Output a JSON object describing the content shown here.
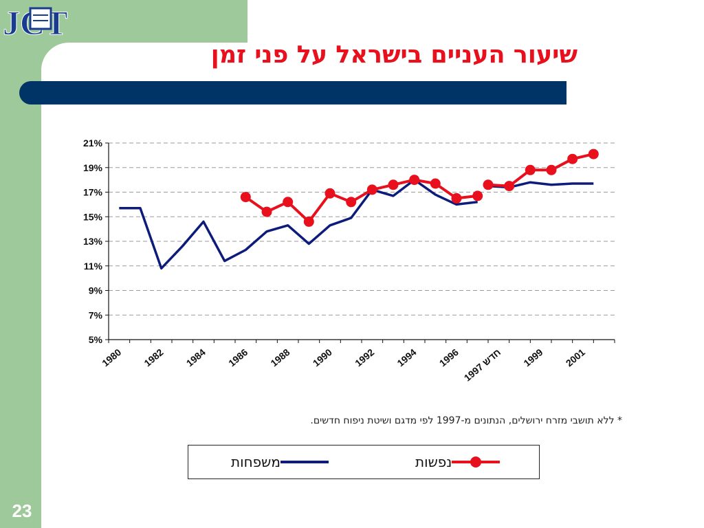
{
  "slide": {
    "title": "שיעור העניים בישראל על פני זמן",
    "page_number": "23",
    "footnote": "* ללא תושבי מזרח ירושלים, הנתונים מ-1997 לפי מדגם ושיטת ניפוח חדשים.",
    "logo_text": "JCT",
    "colors": {
      "sidebar_green": "#9ec99a",
      "bar_navy": "#003366",
      "title_red": "#e8101c"
    }
  },
  "legend": {
    "families_label": "משפחות",
    "persons_label": "נפשות"
  },
  "chart_data": {
    "type": "line",
    "x_tick_labels": [
      "1980",
      "1982",
      "1984",
      "1986",
      "1988",
      "1990",
      "1992",
      "1994",
      "1996",
      "1997 חדש",
      "1999",
      "2001"
    ],
    "y_tick_labels": [
      "21%",
      "19%",
      "17%",
      "15%",
      "13%",
      "11%",
      "9%",
      "7%",
      "5%"
    ],
    "ylim": [
      5,
      21
    ],
    "grid": true,
    "legend_position": "bottom",
    "series": [
      {
        "name": "משפחות",
        "color": "#0d1b7a",
        "marker": "none",
        "segments": [
          {
            "x": [
              1980,
              1981,
              1982,
              1983,
              1984,
              1985,
              1986,
              1987,
              1988,
              1989,
              1990,
              1991,
              1992,
              1993,
              1994,
              1995,
              1996,
              1997
            ],
            "y": [
              15.7,
              15.7,
              10.8,
              12.6,
              14.6,
              11.4,
              12.3,
              13.8,
              14.3,
              12.8,
              14.3,
              14.9,
              17.2,
              16.7,
              18.0,
              16.8,
              16.0,
              16.2
            ]
          },
          {
            "x": [
              1997.5,
              1998.5,
              1999.5,
              2000.5,
              2001.5,
              2002.5
            ],
            "y": [
              17.5,
              17.4,
              17.8,
              17.6,
              17.7,
              17.7
            ]
          }
        ]
      },
      {
        "name": "נפשות",
        "color": "#e8101c",
        "marker": "circle",
        "segments": [
          {
            "x": [
              1986,
              1987,
              1988,
              1989,
              1990,
              1991,
              1992,
              1993,
              1994,
              1995,
              1996,
              1997
            ],
            "y": [
              16.6,
              15.4,
              16.2,
              14.6,
              16.9,
              16.2,
              17.2,
              17.6,
              18.0,
              17.7,
              16.5,
              16.7
            ]
          },
          {
            "x": [
              1997.5,
              1998.5,
              1999.5,
              2000.5,
              2001.5,
              2002.5
            ],
            "y": [
              17.6,
              17.5,
              18.8,
              18.8,
              19.7,
              20.1
            ]
          }
        ]
      }
    ]
  }
}
